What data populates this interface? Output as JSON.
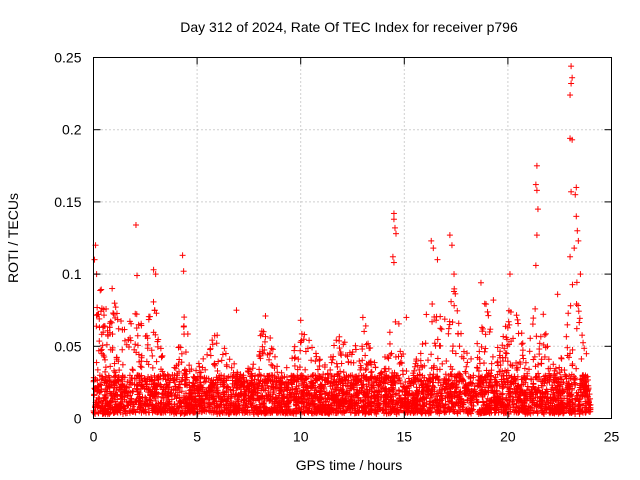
{
  "chart_data": {
    "type": "scatter",
    "title": "Day 312 of 2024, Rate Of TEC Index for receiver p796",
    "xlabel": "GPS time / hours",
    "ylabel": "ROTI / TECUs",
    "xlim": [
      0,
      25
    ],
    "ylim": [
      0,
      0.25
    ],
    "grid": true,
    "marker": "plus",
    "color": "#ff0000",
    "x_ticks": [
      0,
      5,
      10,
      15,
      20,
      25
    ],
    "x_tick_labels": [
      "0",
      "5",
      "10",
      "15",
      "20",
      "25"
    ],
    "y_ticks": [
      0,
      0.05,
      0.1,
      0.15,
      0.2,
      0.25
    ],
    "y_tick_labels": [
      "0",
      "0.05",
      "0.1",
      "0.15",
      "0.2",
      "0.25"
    ],
    "data_x_range": [
      0,
      24
    ],
    "baseline_range": [
      0.003,
      0.03
    ],
    "series": [
      {
        "name": "ROTI",
        "notable_points": [
          {
            "x": 0.1,
            "y": 0.12
          },
          {
            "x": 0.05,
            "y": 0.11
          },
          {
            "x": 0.15,
            "y": 0.1
          },
          {
            "x": 0.9,
            "y": 0.09
          },
          {
            "x": 2.05,
            "y": 0.134
          },
          {
            "x": 2.1,
            "y": 0.099
          },
          {
            "x": 2.9,
            "y": 0.103
          },
          {
            "x": 3.0,
            "y": 0.1
          },
          {
            "x": 4.3,
            "y": 0.113
          },
          {
            "x": 4.35,
            "y": 0.102
          },
          {
            "x": 6.9,
            "y": 0.075
          },
          {
            "x": 8.3,
            "y": 0.071
          },
          {
            "x": 10.0,
            "y": 0.068
          },
          {
            "x": 13.0,
            "y": 0.07
          },
          {
            "x": 14.5,
            "y": 0.142
          },
          {
            "x": 14.5,
            "y": 0.138
          },
          {
            "x": 14.55,
            "y": 0.132
          },
          {
            "x": 14.6,
            "y": 0.128
          },
          {
            "x": 14.45,
            "y": 0.112
          },
          {
            "x": 14.5,
            "y": 0.108
          },
          {
            "x": 15.1,
            "y": 0.07
          },
          {
            "x": 16.3,
            "y": 0.123
          },
          {
            "x": 16.4,
            "y": 0.118
          },
          {
            "x": 16.6,
            "y": 0.11
          },
          {
            "x": 17.2,
            "y": 0.127
          },
          {
            "x": 17.3,
            "y": 0.12
          },
          {
            "x": 17.4,
            "y": 0.1
          },
          {
            "x": 18.7,
            "y": 0.094
          },
          {
            "x": 19.3,
            "y": 0.082
          },
          {
            "x": 20.1,
            "y": 0.1
          },
          {
            "x": 21.4,
            "y": 0.175
          },
          {
            "x": 21.35,
            "y": 0.162
          },
          {
            "x": 21.4,
            "y": 0.158
          },
          {
            "x": 21.45,
            "y": 0.145
          },
          {
            "x": 21.4,
            "y": 0.127
          },
          {
            "x": 21.35,
            "y": 0.106
          },
          {
            "x": 22.4,
            "y": 0.086
          },
          {
            "x": 23.05,
            "y": 0.244
          },
          {
            "x": 23.1,
            "y": 0.236
          },
          {
            "x": 23.05,
            "y": 0.232
          },
          {
            "x": 23.0,
            "y": 0.224
          },
          {
            "x": 23.0,
            "y": 0.194
          },
          {
            "x": 23.1,
            "y": 0.193
          },
          {
            "x": 23.05,
            "y": 0.157
          },
          {
            "x": 23.3,
            "y": 0.16
          },
          {
            "x": 23.25,
            "y": 0.155
          },
          {
            "x": 23.3,
            "y": 0.14
          },
          {
            "x": 23.35,
            "y": 0.13
          },
          {
            "x": 23.4,
            "y": 0.123
          },
          {
            "x": 23.2,
            "y": 0.118
          },
          {
            "x": 23.0,
            "y": 0.112
          },
          {
            "x": 23.5,
            "y": 0.1
          }
        ]
      }
    ]
  }
}
